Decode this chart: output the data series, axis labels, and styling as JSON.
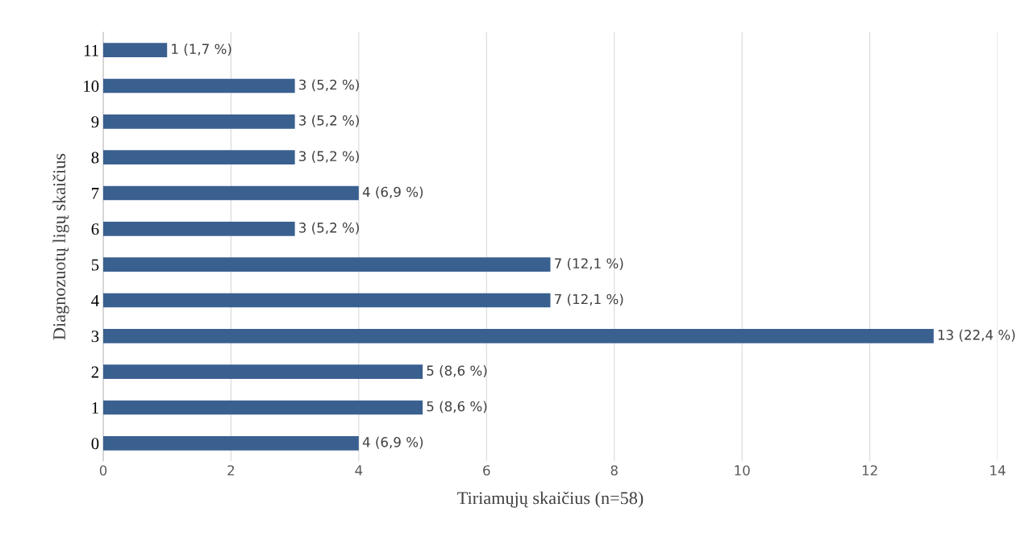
{
  "chart_data": {
    "type": "bar",
    "orientation": "horizontal",
    "xlabel": "Tiriamųjų skaičius (n=58)",
    "ylabel": "Diagnozuotų ligų skaičius",
    "categories": [
      "11",
      "10",
      "9",
      "8",
      "7",
      "6",
      "5",
      "4",
      "3",
      "2",
      "1",
      "0"
    ],
    "values": [
      1,
      3,
      3,
      3,
      4,
      3,
      7,
      7,
      13,
      5,
      5,
      4
    ],
    "value_labels": [
      "1 (1,7 %)",
      "3 (5,2 %)",
      "3 (5,2 %)",
      "3 (5,2 %)",
      "4 (6,9 %)",
      "3 (5,2 %)",
      "7 (12,1 %)",
      "7 (12,1 %)",
      "13 (22,4 %)",
      "5 (8,6 %)",
      "5 (8,6 %)",
      "4 (6,9 %)"
    ],
    "color": "#3a6090",
    "xlim": [
      0,
      14
    ],
    "xticks": [
      0,
      2,
      4,
      6,
      8,
      10,
      12,
      14
    ],
    "grid": "x",
    "legend": false
  }
}
